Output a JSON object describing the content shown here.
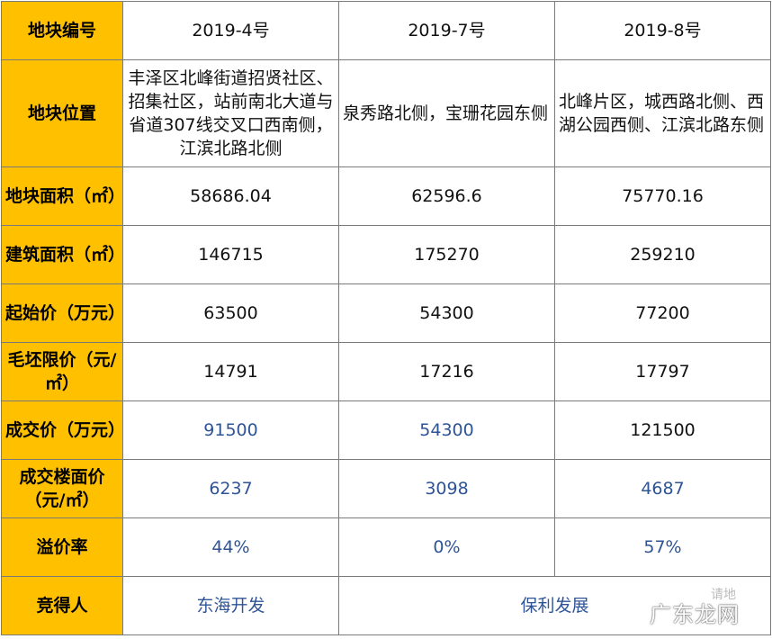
{
  "header": {
    "label": "地块编号",
    "cols": [
      "2019-4号",
      "2019-7号",
      "2019-8号"
    ]
  },
  "rows": [
    {
      "label": "地块位置",
      "values": [
        "丰泽区北峰街道招贤社区、招集社区，站前南北大道与省道307线交叉口西南侧，江滨北路北侧",
        "泉秀路北侧，宝珊花园东侧",
        "北峰片区，城西路北侧、西湖公园西侧、江滨北路东侧"
      ]
    },
    {
      "label": "地块面积（㎡）",
      "values": [
        "58686.04",
        "62596.6",
        "75770.16"
      ]
    },
    {
      "label": "建筑面积（㎡）",
      "values": [
        "146715",
        "175270",
        "259210"
      ]
    },
    {
      "label": "起始价（万元）",
      "values": [
        "63500",
        "54300",
        "77200"
      ]
    },
    {
      "label": "毛坯限价（元/㎡）",
      "values": [
        "14791",
        "17216",
        "17797"
      ]
    },
    {
      "label": "成交价（万元）",
      "values": [
        "91500",
        "54300",
        "121500"
      ]
    },
    {
      "label": "成交楼面价（元/㎡）",
      "values": [
        "6237",
        "3098",
        "4687"
      ]
    },
    {
      "label": "溢价率",
      "values": [
        "44%",
        "0%",
        "57%"
      ]
    },
    {
      "label": "竞得人",
      "values": [
        "东海开发",
        "保利发展"
      ]
    }
  ],
  "watermark": {
    "small": "请地",
    "large": "广东龙网"
  },
  "colors": {
    "label_bg": "#ffc000",
    "highlight_text": "#2f5496"
  }
}
